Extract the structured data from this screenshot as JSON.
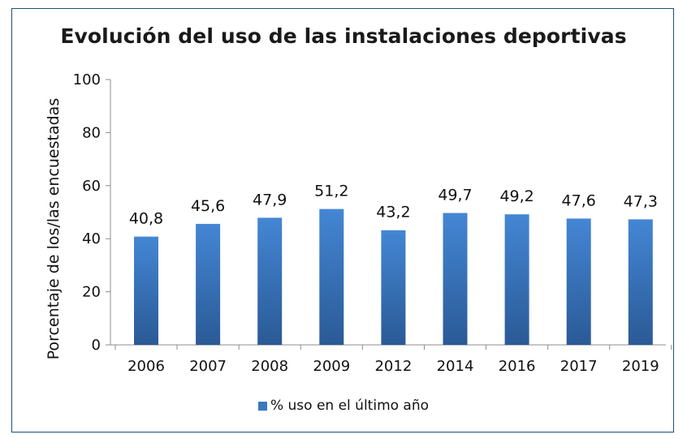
{
  "chart_data": {
    "type": "bar",
    "title": "Evolución del uso de las instalaciones deportivas",
    "xlabel": "",
    "ylabel": "Porcentaje de  los/las encuestadas",
    "categories": [
      "2006",
      "2007",
      "2008",
      "2009",
      "2012",
      "2014",
      "2016",
      "2017",
      "2019"
    ],
    "series": [
      {
        "name": "% uso en el último año",
        "values": [
          40.8,
          45.6,
          47.9,
          51.2,
          43.2,
          49.7,
          49.2,
          47.6,
          47.3
        ],
        "labels": [
          "40,8",
          "45,6",
          "47,9",
          "51,2",
          "43,2",
          "49,7",
          "49,2",
          "47,6",
          "47,3"
        ],
        "color": "#3a78c2"
      }
    ],
    "ylim": [
      0,
      100
    ],
    "yticks": [
      0,
      20,
      40,
      60,
      80,
      100
    ],
    "grid": false,
    "legend_position": "bottom"
  }
}
